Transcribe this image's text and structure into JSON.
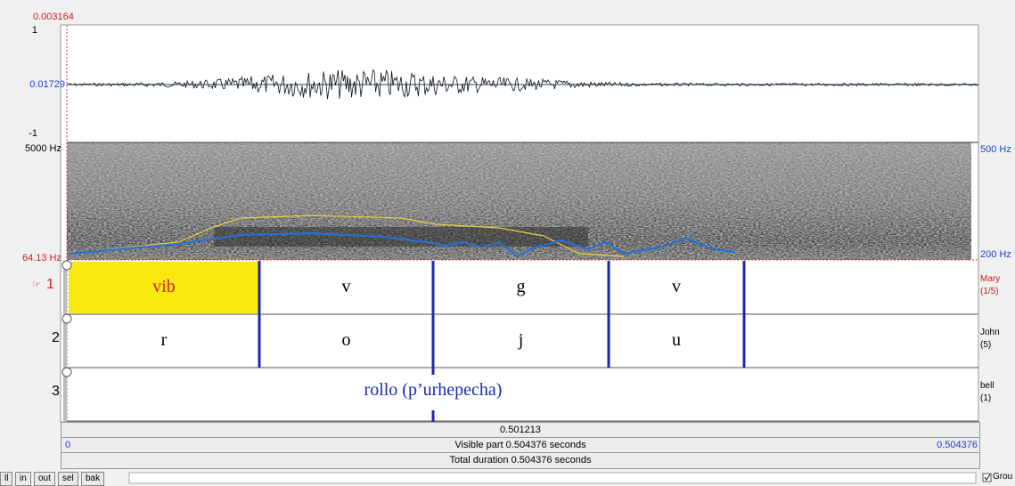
{
  "cursor": {
    "time": "0.003164"
  },
  "waveform": {
    "max": "1",
    "value": "0.01729",
    "min": "-1"
  },
  "spectrogram": {
    "top": "5000 Hz",
    "bottom": "64.13 Hz",
    "pitch_top": "500 Hz",
    "pitch_bottom": "200 Hz"
  },
  "tiers": [
    {
      "number": "1",
      "name": "Mary",
      "count": "(1/5)",
      "intervals": [
        "vib",
        "v",
        "g",
        "v"
      ]
    },
    {
      "number": "2",
      "name": "John",
      "count": "(5)",
      "intervals": [
        "r",
        "o",
        "j",
        "u"
      ]
    },
    {
      "number": "3",
      "name": "bell",
      "count": "(1)",
      "points": [
        "rollo (p’urhepecha)"
      ]
    }
  ],
  "time_bars": {
    "selection": "0.501213",
    "visible_start": "0",
    "visible_label": "Visible part 0.504376 seconds",
    "visible_end": "0.504376",
    "total": "Total duration 0.504376 seconds"
  },
  "buttons": [
    "ll",
    "in",
    "out",
    "sel",
    "bak"
  ],
  "group_checkbox": "Grou"
}
